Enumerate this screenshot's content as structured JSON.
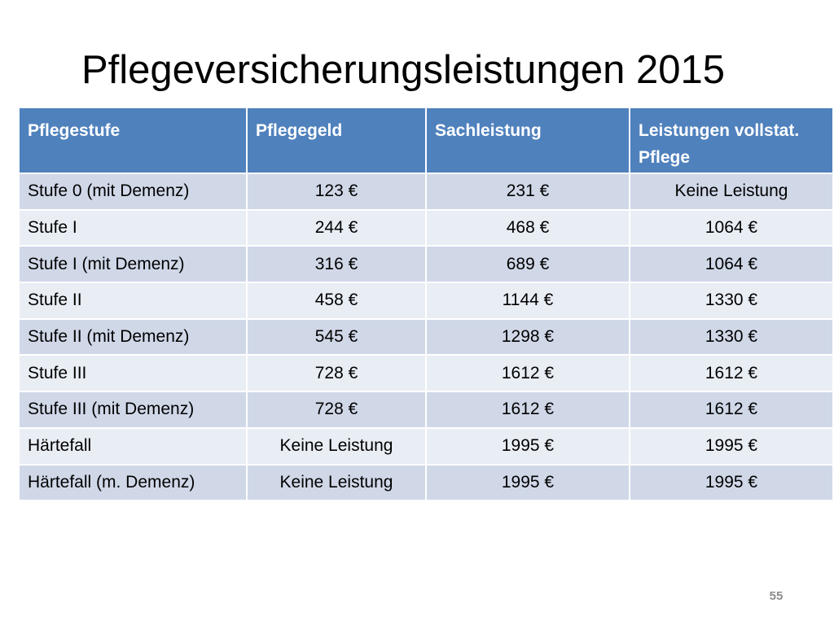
{
  "slide": {
    "title": "Pflegeversicherungsleistungen 2015",
    "page_number": "55"
  },
  "table": {
    "headers": [
      "Pflegestufe",
      "Pflegegeld",
      "Sachleistung",
      "Leistungen vollstat. Pflege"
    ],
    "rows": [
      [
        "Stufe 0 (mit Demenz)",
        "123 €",
        "231 €",
        "Keine Leistung"
      ],
      [
        "Stufe I",
        "244 €",
        "468 €",
        "1064 €"
      ],
      [
        "Stufe I (mit Demenz)",
        "316 €",
        "689 €",
        "1064 €"
      ],
      [
        "Stufe II",
        "458 €",
        "1144 €",
        "1330 €"
      ],
      [
        "Stufe II (mit Demenz)",
        "545 €",
        "1298 €",
        "1330 €"
      ],
      [
        "Stufe III",
        "728 €",
        "1612 €",
        "1612 €"
      ],
      [
        "Stufe III (mit Demenz)",
        "728 €",
        "1612 €",
        "1612 €"
      ],
      [
        "Härtefall",
        "Keine Leistung",
        "1995 €",
        "1995 €"
      ],
      [
        "Härtefall (m. Demenz)",
        "Keine Leistung",
        "1995 €",
        "1995 €"
      ]
    ]
  },
  "colors": {
    "header_bg": "#4f81bd",
    "row_odd_bg": "#d0d8e8",
    "row_even_bg": "#e9edf4",
    "header_text": "#ffffff",
    "page_number_text": "#8c8c8c"
  }
}
